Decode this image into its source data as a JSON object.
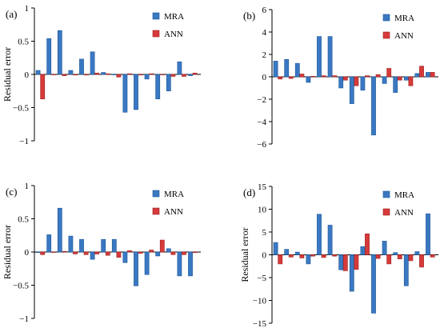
{
  "colors": {
    "mra_fill": "#3a78c2",
    "mra_stroke": "#1f5a9c",
    "ann_fill": "#d63a3a",
    "ann_stroke": "#9e2222",
    "axis": "#000000"
  },
  "chart_data": [
    {
      "type": "bar",
      "panel_label": "(a)",
      "ylabel": "Residual error",
      "ylim": [
        -1,
        1
      ],
      "yticks": [
        -1,
        -0.5,
        0,
        0.5,
        1
      ],
      "ytick_labels": [
        "−1",
        "−0.5",
        "0",
        "0.5",
        "1"
      ],
      "legend_position": "top-right",
      "grid": false,
      "series": [
        {
          "name": "MRA",
          "values": [
            0.06,
            0.54,
            0.66,
            0.06,
            0.23,
            0.34,
            0.03,
            0.0,
            -0.57,
            -0.53,
            -0.07,
            -0.37,
            -0.25,
            0.19,
            -0.02
          ]
        },
        {
          "name": "ANN",
          "values": [
            -0.37,
            0.0,
            -0.02,
            -0.01,
            -0.01,
            0.02,
            0.01,
            -0.04,
            0.01,
            -0.01,
            0.01,
            0.0,
            -0.03,
            -0.03,
            0.02
          ]
        }
      ]
    },
    {
      "type": "bar",
      "panel_label": "(b)",
      "ylabel": "",
      "ylim": [
        -6,
        6
      ],
      "yticks": [
        -6,
        -4,
        -2,
        0,
        2,
        4,
        6
      ],
      "ytick_labels": [
        "−6",
        "−4",
        "−2",
        "0",
        "2",
        "4",
        "6"
      ],
      "legend_position": "top-right",
      "grid": false,
      "series": [
        {
          "name": "MRA",
          "values": [
            1.4,
            1.55,
            1.2,
            -0.5,
            3.6,
            3.6,
            -1.0,
            -2.4,
            -1.2,
            -5.2,
            -0.6,
            -1.4,
            -0.3,
            0.3,
            0.4
          ]
        },
        {
          "name": "ANN",
          "values": [
            -0.2,
            -0.15,
            0.25,
            0.05,
            0.1,
            0.1,
            -0.3,
            -0.8,
            0.1,
            0.2,
            0.75,
            -0.3,
            -0.8,
            0.95,
            0.4
          ]
        }
      ]
    },
    {
      "type": "bar",
      "panel_label": "(c)",
      "ylabel": "Residual error",
      "ylim": [
        -1,
        1
      ],
      "yticks": [
        -1,
        -0.5,
        0,
        0.5,
        1
      ],
      "ytick_labels": [
        "−1",
        "−0.5",
        "0",
        "0.5",
        "1"
      ],
      "legend_position": "top-right",
      "grid": false,
      "series": [
        {
          "name": "MRA",
          "values": [
            -0.01,
            0.26,
            0.66,
            0.24,
            0.19,
            -0.11,
            0.19,
            0.19,
            -0.16,
            -0.51,
            -0.34,
            -0.06,
            0.05,
            -0.36,
            -0.36
          ]
        },
        {
          "name": "ANN",
          "values": [
            -0.04,
            0.0,
            0.01,
            -0.03,
            -0.04,
            -0.03,
            -0.05,
            -0.08,
            0.02,
            -0.02,
            0.03,
            0.18,
            -0.04,
            -0.04,
            -0.01
          ]
        }
      ]
    },
    {
      "type": "bar",
      "panel_label": "(d)",
      "ylabel": "Residual error",
      "ylim": [
        -15,
        15
      ],
      "yticks": [
        -15,
        -10,
        -5,
        0,
        5,
        10,
        15
      ],
      "ytick_labels": [
        "−15",
        "−10",
        "−5",
        "0",
        "5",
        "10",
        "15"
      ],
      "legend_position": "top-right",
      "grid": false,
      "series": [
        {
          "name": "MRA",
          "values": [
            2.7,
            1.2,
            0.6,
            -2.0,
            8.9,
            6.5,
            -3.3,
            -8.0,
            1.8,
            -12.8,
            3.0,
            0.5,
            -6.8,
            0.7,
            9.0
          ]
        },
        {
          "name": "ANN",
          "values": [
            -2.0,
            -0.5,
            -0.7,
            -0.3,
            -0.6,
            -0.3,
            -3.5,
            -3.2,
            4.6,
            -0.8,
            -2.0,
            -0.9,
            -1.3,
            -2.7,
            -0.5
          ]
        }
      ]
    }
  ]
}
